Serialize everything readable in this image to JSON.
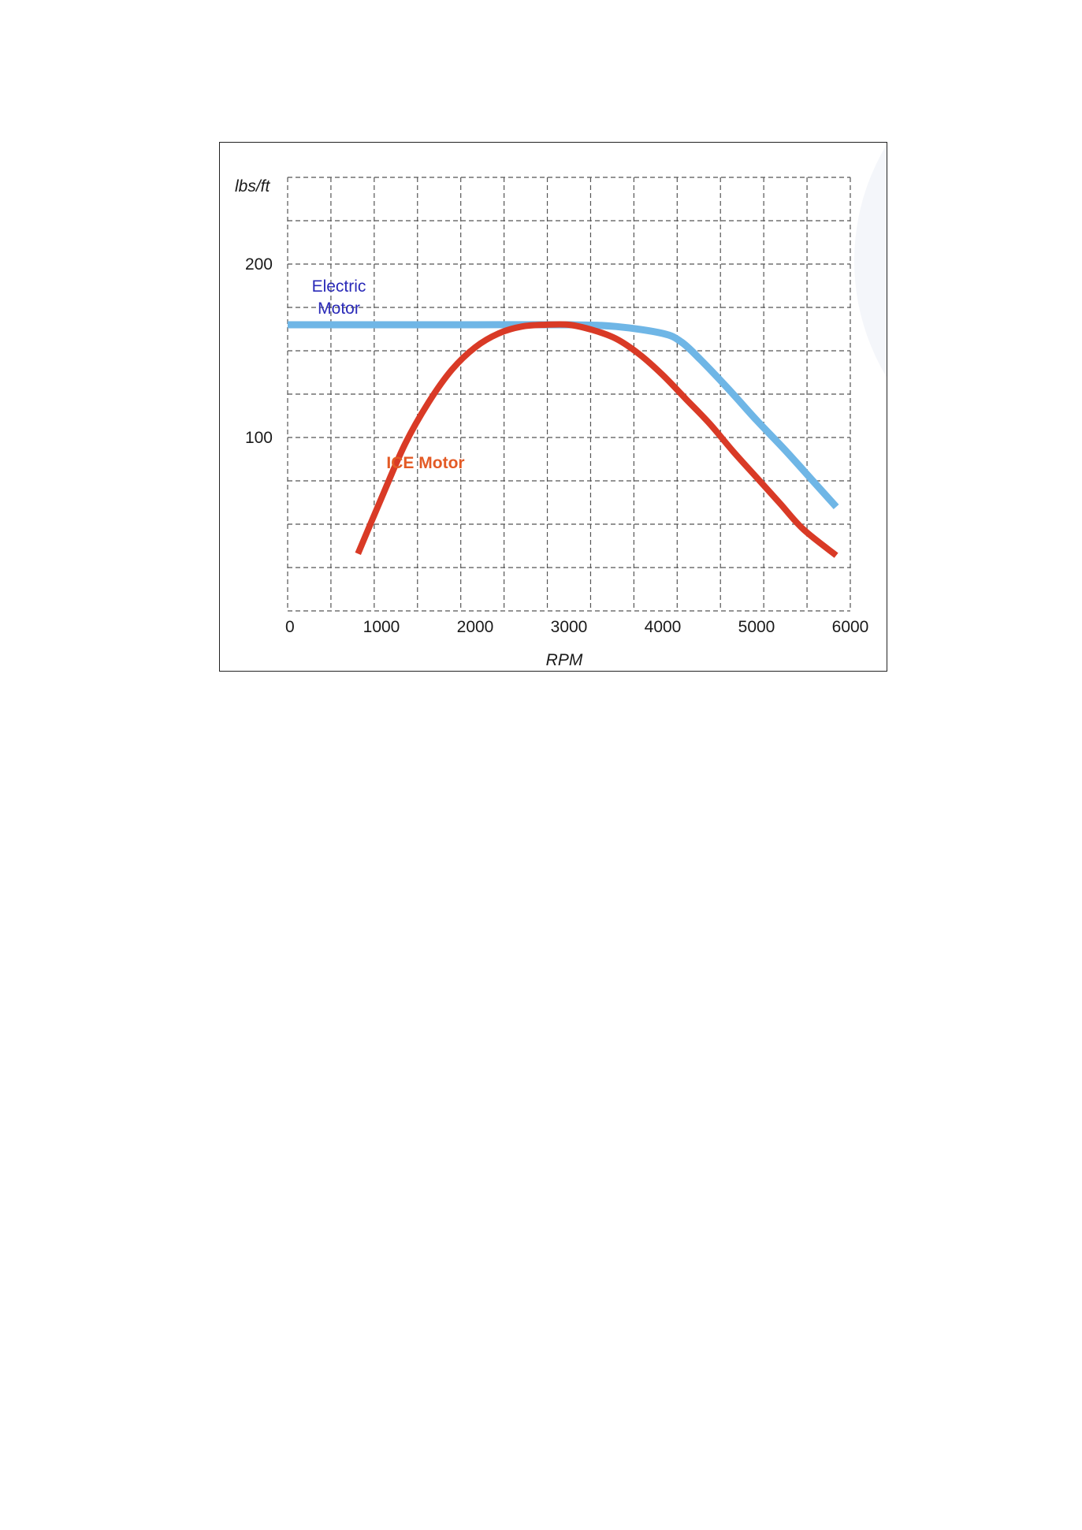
{
  "chart_data": {
    "type": "line",
    "xlabel": "RPM",
    "ylabel": "lbs/ft",
    "x_ticks": [
      "0",
      "1000",
      "2000",
      "3000",
      "4000",
      "5000",
      "6000"
    ],
    "y_ticks": [
      {
        "value": 100,
        "label": "100"
      },
      {
        "value": 200,
        "label": "200"
      }
    ],
    "xlim": [
      0,
      6000
    ],
    "ylim": [
      0,
      250
    ],
    "grid": true,
    "grid_style": "dashed",
    "legend": "none",
    "series": [
      {
        "name": "Electric Motor",
        "label_lines": [
          "Electric",
          "Motor"
        ],
        "line_color": "#6fb6e6",
        "label_color": "#2a2ab8",
        "points": [
          [
            0,
            165
          ],
          [
            1000,
            165
          ],
          [
            2000,
            165
          ],
          [
            3000,
            165
          ],
          [
            3500,
            164
          ],
          [
            4000,
            160
          ],
          [
            4200,
            155
          ],
          [
            4400,
            145
          ],
          [
            4700,
            128
          ],
          [
            5000,
            110
          ],
          [
            5300,
            93
          ],
          [
            5600,
            75
          ],
          [
            5850,
            60
          ]
        ]
      },
      {
        "name": "ICE Motor",
        "label_lines": [
          "ICE Motor"
        ],
        "line_color": "#d93a26",
        "label_color": "#e35a25",
        "points": [
          [
            750,
            33
          ],
          [
            1000,
            65
          ],
          [
            1250,
            96
          ],
          [
            1500,
            120
          ],
          [
            1750,
            139
          ],
          [
            2000,
            152
          ],
          [
            2250,
            160
          ],
          [
            2500,
            164
          ],
          [
            2750,
            165
          ],
          [
            3000,
            165
          ],
          [
            3250,
            162
          ],
          [
            3500,
            157
          ],
          [
            3750,
            148
          ],
          [
            4000,
            136
          ],
          [
            4250,
            122
          ],
          [
            4500,
            108
          ],
          [
            4750,
            92
          ],
          [
            5000,
            77
          ],
          [
            5250,
            62
          ],
          [
            5500,
            47
          ],
          [
            5850,
            32
          ]
        ]
      }
    ]
  }
}
